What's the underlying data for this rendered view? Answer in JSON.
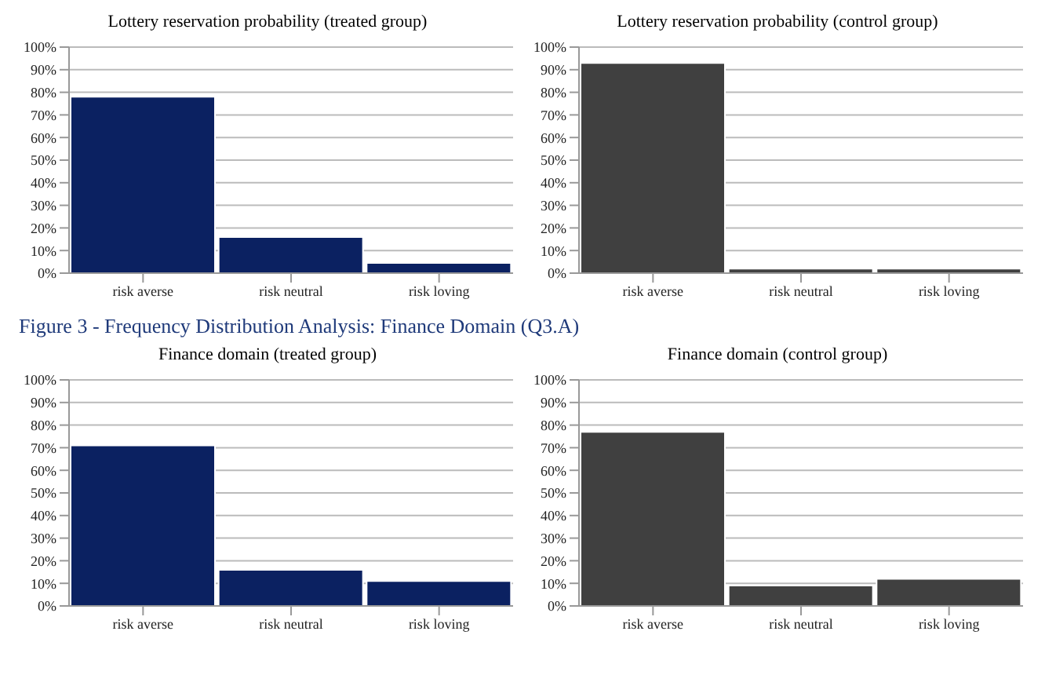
{
  "chart_data": [
    {
      "type": "bar",
      "title": "Lottery reservation probability (treated group)",
      "categories": [
        "risk averse",
        "risk neutral",
        "risk loving"
      ],
      "values": [
        78,
        16,
        4.5
      ],
      "color": "#0b2161",
      "ylim": [
        0,
        100
      ],
      "yticks": [
        {
          "value": 0,
          "label": "0%"
        },
        {
          "value": 10,
          "label": "10%"
        },
        {
          "value": 20,
          "label": "20%"
        },
        {
          "value": 30,
          "label": "30%"
        },
        {
          "value": 40,
          "label": "40%"
        },
        {
          "value": 50,
          "label": "50%"
        },
        {
          "value": 60,
          "label": "60%"
        },
        {
          "value": 70,
          "label": "70%"
        },
        {
          "value": 80,
          "label": "80%"
        },
        {
          "value": 90,
          "label": "90%"
        },
        {
          "value": 100,
          "label": "100%"
        }
      ],
      "grid": "y",
      "legend": false
    },
    {
      "type": "bar",
      "title": "Lottery reservation probability (control group)",
      "categories": [
        "risk averse",
        "risk neutral",
        "risk loving"
      ],
      "values": [
        93,
        2,
        2
      ],
      "color": "#404040",
      "ylim": [
        0,
        100
      ],
      "yticks": [
        {
          "value": 0,
          "label": "0%"
        },
        {
          "value": 10,
          "label": "10%"
        },
        {
          "value": 20,
          "label": "20%"
        },
        {
          "value": 30,
          "label": "30%"
        },
        {
          "value": 40,
          "label": "40%"
        },
        {
          "value": 50,
          "label": "50%"
        },
        {
          "value": 60,
          "label": "60%"
        },
        {
          "value": 70,
          "label": "70%"
        },
        {
          "value": 80,
          "label": "80%"
        },
        {
          "value": 90,
          "label": "90%"
        },
        {
          "value": 100,
          "label": "100%"
        }
      ],
      "grid": "y",
      "legend": false
    },
    {
      "type": "bar",
      "title": "Finance domain (treated group)",
      "annotations": [
        "Figure 3 - Frequency Distribution Analysis: Finance Domain (Q3.A)"
      ],
      "categories": [
        "risk averse",
        "risk neutral",
        "risk loving"
      ],
      "values": [
        71,
        16,
        11
      ],
      "color": "#0b2161",
      "ylim": [
        0,
        100
      ],
      "yticks": [
        {
          "value": 0,
          "label": "0%"
        },
        {
          "value": 10,
          "label": "10%"
        },
        {
          "value": 20,
          "label": "20%"
        },
        {
          "value": 30,
          "label": "30%"
        },
        {
          "value": 40,
          "label": "40%"
        },
        {
          "value": 50,
          "label": "50%"
        },
        {
          "value": 60,
          "label": "60%"
        },
        {
          "value": 70,
          "label": "70%"
        },
        {
          "value": 80,
          "label": "80%"
        },
        {
          "value": 90,
          "label": "90%"
        },
        {
          "value": 100,
          "label": "100%"
        }
      ],
      "grid": "y",
      "legend": false
    },
    {
      "type": "bar",
      "title": "Finance domain (control group)",
      "categories": [
        "risk averse",
        "risk neutral",
        "risk loving"
      ],
      "values": [
        77,
        9,
        12
      ],
      "color": "#404040",
      "ylim": [
        0,
        100
      ],
      "yticks": [
        {
          "value": 0,
          "label": "0%"
        },
        {
          "value": 10,
          "label": "10%"
        },
        {
          "value": 20,
          "label": "20%"
        },
        {
          "value": 30,
          "label": "30%"
        },
        {
          "value": 40,
          "label": "40%"
        },
        {
          "value": 50,
          "label": "50%"
        },
        {
          "value": 60,
          "label": "60%"
        },
        {
          "value": 70,
          "label": "70%"
        },
        {
          "value": 80,
          "label": "80%"
        },
        {
          "value": 90,
          "label": "90%"
        },
        {
          "value": 100,
          "label": "100%"
        }
      ],
      "grid": "y",
      "legend": false
    }
  ]
}
